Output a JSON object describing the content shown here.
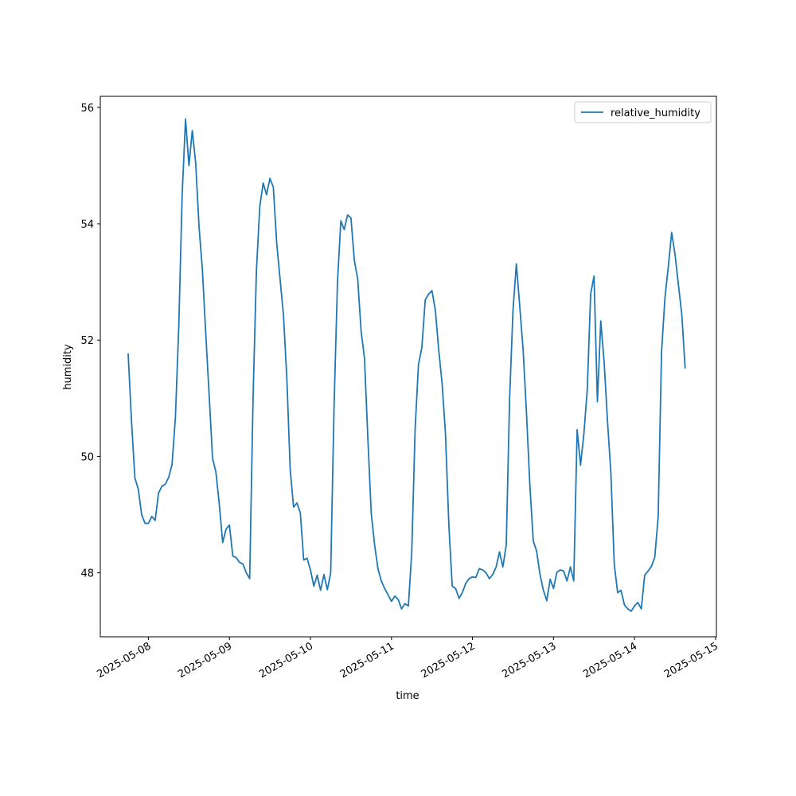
{
  "chart_data": {
    "type": "line",
    "xlabel": "time",
    "ylabel": "humidity",
    "legend": "upper right",
    "x": [
      "2025-05-07 18:00",
      "2025-05-07 19:00",
      "2025-05-07 20:00",
      "2025-05-07 21:00",
      "2025-05-07 22:00",
      "2025-05-07 23:00",
      "2025-05-08 00:00",
      "2025-05-08 01:00",
      "2025-05-08 02:00",
      "2025-05-08 03:00",
      "2025-05-08 04:00",
      "2025-05-08 05:00",
      "2025-05-08 06:00",
      "2025-05-08 07:00",
      "2025-05-08 08:00",
      "2025-05-08 09:00",
      "2025-05-08 10:00",
      "2025-05-08 11:00",
      "2025-05-08 12:00",
      "2025-05-08 13:00",
      "2025-05-08 14:00",
      "2025-05-08 15:00",
      "2025-05-08 16:00",
      "2025-05-08 17:00",
      "2025-05-08 18:00",
      "2025-05-08 19:00",
      "2025-05-08 20:00",
      "2025-05-08 21:00",
      "2025-05-08 22:00",
      "2025-05-08 23:00",
      "2025-05-09 00:00",
      "2025-05-09 01:00",
      "2025-05-09 02:00",
      "2025-05-09 03:00",
      "2025-05-09 04:00",
      "2025-05-09 05:00",
      "2025-05-09 06:00",
      "2025-05-09 07:00",
      "2025-05-09 08:00",
      "2025-05-09 09:00",
      "2025-05-09 10:00",
      "2025-05-09 11:00",
      "2025-05-09 12:00",
      "2025-05-09 13:00",
      "2025-05-09 14:00",
      "2025-05-09 15:00",
      "2025-05-09 16:00",
      "2025-05-09 17:00",
      "2025-05-09 18:00",
      "2025-05-09 19:00",
      "2025-05-09 20:00",
      "2025-05-09 21:00",
      "2025-05-09 22:00",
      "2025-05-09 23:00",
      "2025-05-10 00:00",
      "2025-05-10 01:00",
      "2025-05-10 02:00",
      "2025-05-10 03:00",
      "2025-05-10 04:00",
      "2025-05-10 05:00",
      "2025-05-10 06:00",
      "2025-05-10 07:00",
      "2025-05-10 08:00",
      "2025-05-10 09:00",
      "2025-05-10 10:00",
      "2025-05-10 11:00",
      "2025-05-10 12:00",
      "2025-05-10 13:00",
      "2025-05-10 14:00",
      "2025-05-10 15:00",
      "2025-05-10 16:00",
      "2025-05-10 17:00",
      "2025-05-10 18:00",
      "2025-05-10 19:00",
      "2025-05-10 20:00",
      "2025-05-10 21:00",
      "2025-05-10 22:00",
      "2025-05-10 23:00",
      "2025-05-11 00:00",
      "2025-05-11 01:00",
      "2025-05-11 02:00",
      "2025-05-11 03:00",
      "2025-05-11 04:00",
      "2025-05-11 05:00",
      "2025-05-11 06:00",
      "2025-05-11 07:00",
      "2025-05-11 08:00",
      "2025-05-11 09:00",
      "2025-05-11 10:00",
      "2025-05-11 11:00",
      "2025-05-11 12:00",
      "2025-05-11 13:00",
      "2025-05-11 14:00",
      "2025-05-11 15:00",
      "2025-05-11 16:00",
      "2025-05-11 17:00",
      "2025-05-11 18:00",
      "2025-05-11 19:00",
      "2025-05-11 20:00",
      "2025-05-11 21:00",
      "2025-05-11 22:00",
      "2025-05-11 23:00",
      "2025-05-12 00:00",
      "2025-05-12 01:00",
      "2025-05-12 02:00",
      "2025-05-12 03:00",
      "2025-05-12 04:00",
      "2025-05-12 05:00",
      "2025-05-12 06:00",
      "2025-05-12 07:00",
      "2025-05-12 08:00",
      "2025-05-12 09:00",
      "2025-05-12 10:00",
      "2025-05-12 11:00",
      "2025-05-12 12:00",
      "2025-05-12 13:00",
      "2025-05-12 14:00",
      "2025-05-12 15:00",
      "2025-05-12 16:00",
      "2025-05-12 17:00",
      "2025-05-12 18:00",
      "2025-05-12 19:00",
      "2025-05-12 20:00",
      "2025-05-12 21:00",
      "2025-05-12 22:00",
      "2025-05-12 23:00",
      "2025-05-13 00:00",
      "2025-05-13 01:00",
      "2025-05-13 02:00",
      "2025-05-13 03:00",
      "2025-05-13 04:00",
      "2025-05-13 05:00",
      "2025-05-13 06:00",
      "2025-05-13 07:00",
      "2025-05-13 08:00",
      "2025-05-13 09:00",
      "2025-05-13 10:00",
      "2025-05-13 11:00",
      "2025-05-13 12:00",
      "2025-05-13 13:00",
      "2025-05-13 14:00",
      "2025-05-13 15:00",
      "2025-05-13 16:00",
      "2025-05-13 17:00",
      "2025-05-13 18:00",
      "2025-05-13 19:00",
      "2025-05-13 20:00",
      "2025-05-13 21:00",
      "2025-05-13 22:00",
      "2025-05-13 23:00",
      "2025-05-14 00:00",
      "2025-05-14 01:00",
      "2025-05-14 02:00",
      "2025-05-14 03:00",
      "2025-05-14 04:00",
      "2025-05-14 05:00",
      "2025-05-14 06:00",
      "2025-05-14 07:00",
      "2025-05-14 08:00",
      "2025-05-14 09:00",
      "2025-05-14 10:00",
      "2025-05-14 11:00",
      "2025-05-14 12:00",
      "2025-05-14 13:00",
      "2025-05-14 14:00",
      "2025-05-14 15:00"
    ],
    "series": [
      {
        "name": "relative_humidity",
        "color": "#1f77b4",
        "values": [
          51.77,
          50.6,
          49.63,
          49.44,
          49.0,
          48.85,
          48.85,
          48.97,
          48.9,
          49.37,
          49.49,
          49.52,
          49.64,
          49.86,
          50.67,
          52.24,
          54.5,
          55.8,
          55.0,
          55.6,
          55.05,
          53.95,
          53.2,
          52.1,
          51.05,
          49.97,
          49.73,
          49.18,
          48.52,
          48.75,
          48.82,
          48.29,
          48.26,
          48.18,
          48.15,
          48.0,
          47.9,
          51.0,
          53.2,
          54.3,
          54.7,
          54.5,
          54.78,
          54.63,
          53.67,
          53.05,
          52.44,
          51.35,
          49.78,
          49.13,
          49.2,
          49.03,
          48.22,
          48.25,
          48.05,
          47.77,
          47.96,
          47.7,
          47.97,
          47.71,
          48.0,
          50.87,
          52.99,
          54.05,
          53.9,
          54.15,
          54.1,
          53.37,
          53.05,
          52.16,
          51.69,
          50.32,
          49.03,
          48.48,
          48.07,
          47.86,
          47.73,
          47.62,
          47.51,
          47.6,
          47.54,
          47.38,
          47.47,
          47.43,
          48.34,
          50.46,
          51.58,
          51.87,
          52.69,
          52.79,
          52.85,
          52.51,
          51.83,
          51.25,
          50.39,
          48.82,
          47.77,
          47.73,
          47.56,
          47.66,
          47.82,
          47.9,
          47.93,
          47.92,
          48.07,
          48.05,
          48.0,
          47.9,
          47.97,
          48.1,
          48.36,
          48.1,
          48.48,
          51.0,
          52.51,
          53.31,
          52.58,
          51.83,
          50.74,
          49.5,
          48.55,
          48.37,
          47.97,
          47.7,
          47.52,
          47.89,
          47.73,
          48.01,
          48.05,
          48.03,
          47.86,
          48.1,
          47.86,
          50.46,
          49.85,
          50.39,
          51.15,
          52.79,
          53.1,
          50.94,
          52.33,
          51.62,
          50.6,
          49.71,
          48.14,
          47.66,
          47.7,
          47.45,
          47.38,
          47.34,
          47.43,
          47.49,
          47.38,
          47.96,
          48.03,
          48.11,
          48.27,
          48.96,
          51.79,
          52.72,
          53.26,
          53.85,
          53.47,
          52.95,
          52.44,
          51.51
        ]
      }
    ],
    "xlim": [
      "2025-05-07 09:45",
      "2025-05-15 00:15"
    ],
    "xticks": [
      "2025-05-08",
      "2025-05-09",
      "2025-05-10",
      "2025-05-11",
      "2025-05-12",
      "2025-05-13",
      "2025-05-14",
      "2025-05-15"
    ],
    "ylim": [
      46.9,
      56.19
    ],
    "yticks": [
      48,
      50,
      52,
      54,
      56
    ]
  }
}
